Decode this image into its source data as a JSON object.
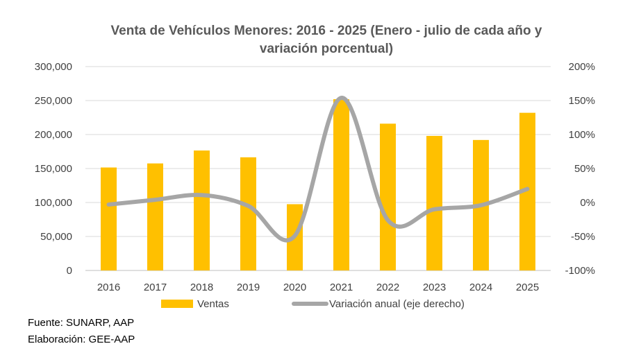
{
  "chart_data": {
    "type": "bar+line",
    "title_line1": "Venta de Vehículos Menores: 2016 - 2025 (Enero - julio de cada año y",
    "title_line2": "variación porcentual)",
    "categories": [
      "2016",
      "2017",
      "2018",
      "2019",
      "2020",
      "2021",
      "2022",
      "2023",
      "2024",
      "2025"
    ],
    "series": [
      {
        "name": "Ventas",
        "type": "bar",
        "axis": "left",
        "color": "#FFC000",
        "values": [
          151500,
          157500,
          176500,
          166500,
          97500,
          252000,
          216000,
          198000,
          192000,
          232000
        ]
      },
      {
        "name": "Variación anual (eje derecho)",
        "type": "line",
        "axis": "right",
        "color": "#A6A6A6",
        "values": [
          -3,
          4,
          11,
          -5,
          -49,
          154,
          -26,
          -10,
          -4,
          20
        ]
      }
    ],
    "y_left": {
      "ylim": [
        0,
        300000
      ],
      "ticks": [
        "0",
        "50,000",
        "100,000",
        "150,000",
        "200,000",
        "250,000",
        "300,000"
      ]
    },
    "y_right": {
      "ylim": [
        -100,
        200
      ],
      "ticks": [
        "-100%",
        "-50%",
        "0%",
        "50%",
        "100%",
        "150%",
        "200%"
      ]
    },
    "grid": true,
    "legend_position": "bottom"
  },
  "source": {
    "fuente": "Fuente: SUNARP, AAP",
    "elaboracion": "Elaboración: GEE-AAP"
  }
}
